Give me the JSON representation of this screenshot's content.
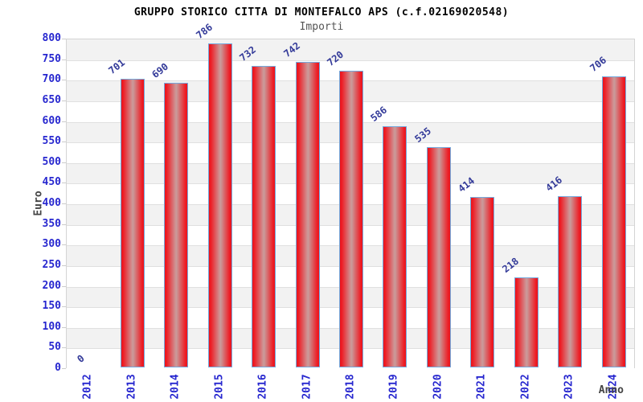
{
  "page": {
    "title": "GRUPPO STORICO CITTA DI MONTEFALCO APS (c.f.02169020548)",
    "subtitle": "Importi"
  },
  "chart_data": {
    "type": "bar",
    "title": "GRUPPO STORICO CITTA DI MONTEFALCO APS (c.f.02169020548)",
    "subtitle": "Importi",
    "xlabel": "Anno",
    "ylabel": "Euro",
    "categories": [
      "2012",
      "2013",
      "2014",
      "2015",
      "2016",
      "2017",
      "2018",
      "2019",
      "2020",
      "2021",
      "2022",
      "2023",
      "2024"
    ],
    "values": [
      0,
      701,
      690,
      786,
      732,
      742,
      720,
      586,
      535,
      414,
      218,
      416,
      706
    ],
    "ylim": [
      0,
      800
    ],
    "ytick_step": 50,
    "legend": "none",
    "grid": "horizontal-alternating-bands",
    "colors": {
      "bar_edge": "#ee1c24",
      "bar_center": "#cf9595",
      "bar_border": "#74aade",
      "axis_tick_text": "#2727cf",
      "value_label_text": "#333a99",
      "band_gray": "#f2f2f2",
      "band_white": "#ffffff",
      "gridline": "#e0e0e0",
      "title_text": "#000000",
      "subtitle_text": "#555555",
      "axis_title_text": "#444444"
    }
  }
}
